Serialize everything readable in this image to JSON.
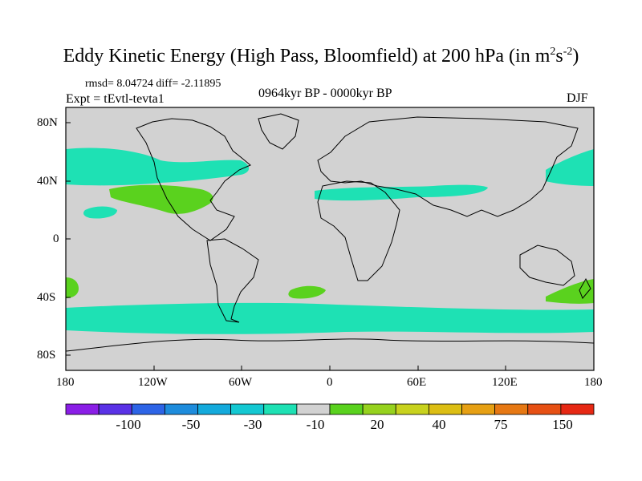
{
  "title": {
    "main": "Eddy Kinetic Energy (High Pass, Bloomfield) at 200 hPa (in m",
    "sup1": "2",
    "mid": "s",
    "sup2": "-2",
    "end": ")"
  },
  "stats_line": "rmsd= 8.04724 diff= -2.11895",
  "period_label": "0964kyr BP - 0000kyr BP",
  "expt_label": "Expt = tEvtl-tevta1",
  "season_label": "DJF",
  "map": {
    "lat_ticks": [
      "80N",
      "40N",
      "0",
      "40S",
      "80S"
    ],
    "lon_ticks": [
      "180",
      "120W",
      "60W",
      "0",
      "60E",
      "120E",
      "180"
    ],
    "background_color": "#d2d2d2"
  },
  "colorbar": {
    "colors": [
      "#8a1ee6",
      "#5a32e6",
      "#2d64e6",
      "#1e8cdc",
      "#14aadc",
      "#14c8d2",
      "#1ee1b4",
      "#d2d2d2",
      "#5ad21e",
      "#96d21e",
      "#c8d21e",
      "#dcbe14",
      "#e6a014",
      "#e67814",
      "#e65014",
      "#e62814"
    ],
    "labels": [
      "-100",
      "-50",
      "-30",
      "-10",
      "20",
      "40",
      "75",
      "150"
    ]
  },
  "anomalies": [
    {
      "lon": -140,
      "lat": 44,
      "category": "-10"
    },
    {
      "lon": -125,
      "lat": 34,
      "category": "20"
    },
    {
      "lon": -154,
      "lat": 20,
      "category": "-10"
    },
    {
      "lon": 60,
      "lat": 35,
      "category": "-10"
    },
    {
      "lon": 165,
      "lat": 44,
      "category": "-10"
    },
    {
      "lon": 20,
      "lat": -38,
      "category": "20"
    },
    {
      "lon": 165,
      "lat": -38,
      "category": "20"
    },
    {
      "lon": -178,
      "lat": -34,
      "category": "20"
    },
    {
      "lon": 0,
      "lat": -56,
      "category": "-10"
    }
  ]
}
